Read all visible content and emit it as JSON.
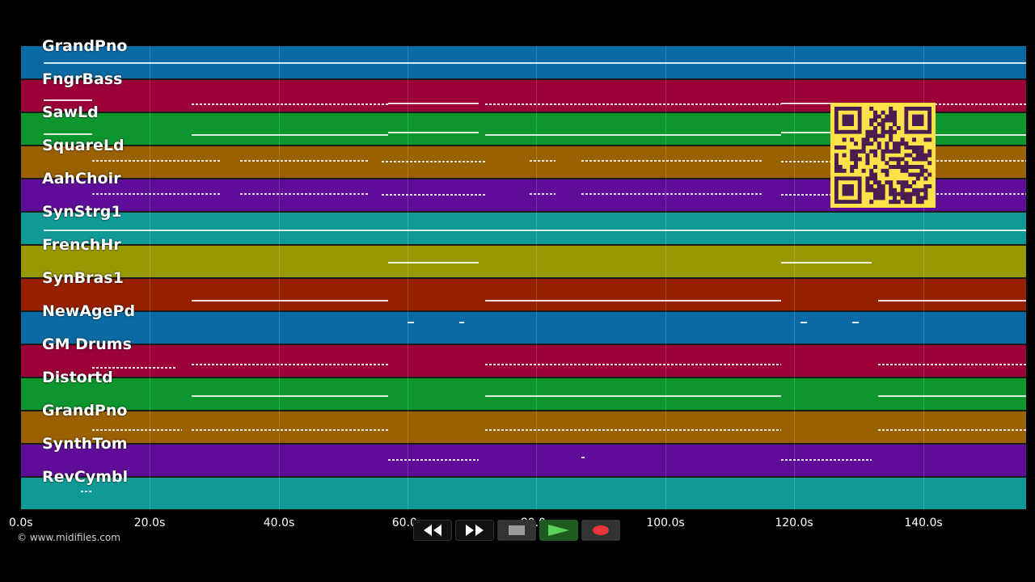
{
  "tracks": [
    {
      "name": "GrandPno",
      "color": "#0a6aa3"
    },
    {
      "name": "FngrBass",
      "color": "#9b0038"
    },
    {
      "name": "SawLd",
      "color": "#0d962e"
    },
    {
      "name": "SquareLd",
      "color": "#9a6100"
    },
    {
      "name": "AahChoir",
      "color": "#5f0d99"
    },
    {
      "name": "SynStrg1",
      "color": "#0f9a96"
    },
    {
      "name": "FrenchHr",
      "color": "#979800"
    },
    {
      "name": "SynBras1",
      "color": "#962100"
    },
    {
      "name": "NewAgePd",
      "color": "#0a6aa3"
    },
    {
      "name": "GM Drums",
      "color": "#9b0038"
    },
    {
      "name": "Distortd",
      "color": "#0d962e"
    },
    {
      "name": "GrandPno",
      "color": "#9a6100"
    },
    {
      "name": "SynthTom",
      "color": "#5f0d99"
    },
    {
      "name": "RevCymbl",
      "color": "#0f9a96"
    }
  ],
  "timeline": {
    "start_seconds": 0,
    "end_seconds": 156,
    "tick_labels": [
      "0.0s",
      "20.0s",
      "40.0s",
      "60.0s",
      "80.0s",
      "100.0s",
      "120.0s",
      "140.0s"
    ],
    "tick_values": [
      0,
      20,
      40,
      60,
      80,
      100,
      120,
      140
    ]
  },
  "copyright": "© www.midifiles.com",
  "qr_color": "#ffe14a",
  "transport": [
    {
      "id": "rewind",
      "icon": "rewind-icon"
    },
    {
      "id": "fast-forward",
      "icon": "fast-forward-icon"
    },
    {
      "id": "stop",
      "icon": "stop-icon"
    },
    {
      "id": "play",
      "icon": "play-icon"
    },
    {
      "id": "record",
      "icon": "record-icon"
    }
  ]
}
